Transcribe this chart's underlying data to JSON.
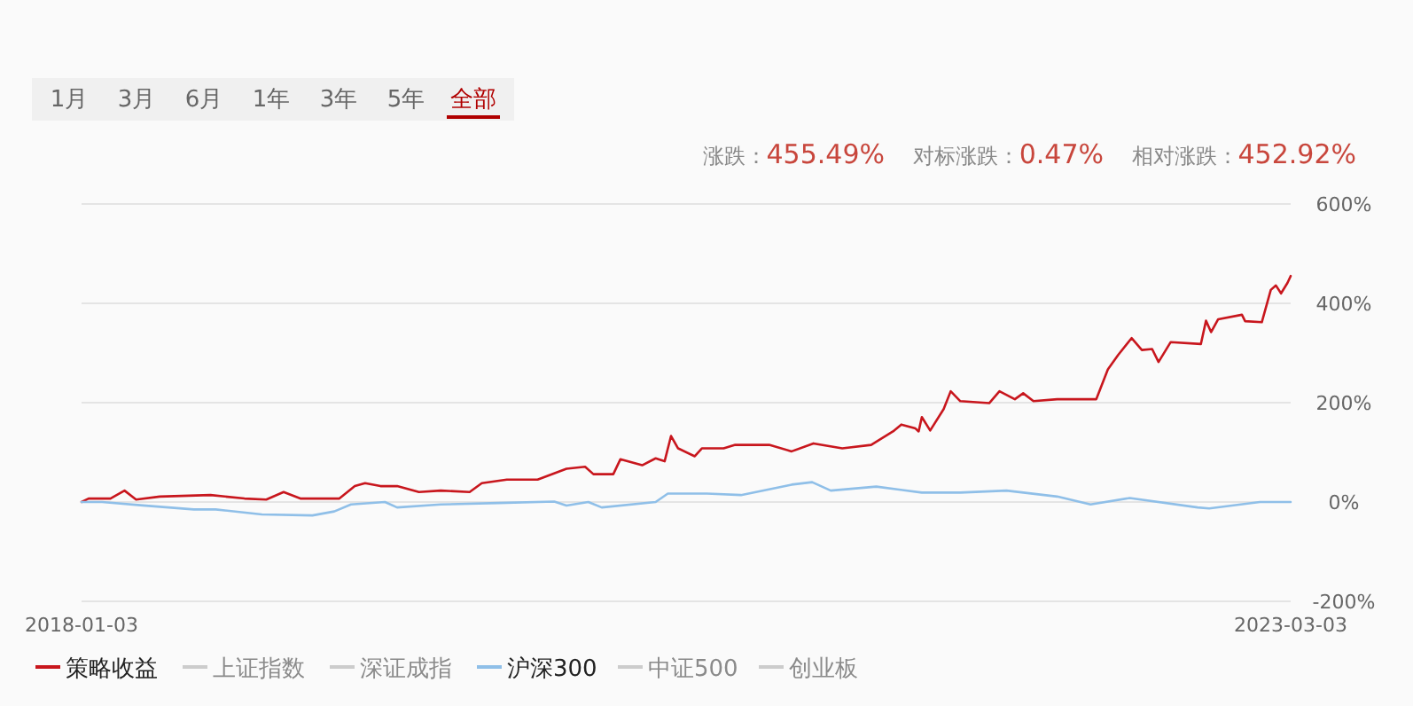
{
  "chart_data": {
    "type": "line",
    "annotations": [
      "1月",
      "3月",
      "6月",
      "1年",
      "3年",
      "5年",
      "全部",
      "涨跌：455.49%",
      "对标涨跌：0.47%",
      "相对涨跌：452.92%"
    ],
    "xlim": [
      "2018-01-03",
      "2023-03-03"
    ],
    "xticks": [
      "2018-01-03",
      "2023-03-03"
    ],
    "ylim": [
      -200,
      600
    ],
    "yticks": [
      {
        "value": -200,
        "label": "-200%"
      },
      {
        "value": 0,
        "label": "0%"
      },
      {
        "value": 200,
        "label": "200%"
      },
      {
        "value": 400,
        "label": "400%"
      },
      {
        "value": 600,
        "label": "600%"
      }
    ],
    "grid": "y",
    "legend": "bottom left",
    "marker": "none",
    "line_style": "solid",
    "series": [
      {
        "name": "策略收益",
        "color": "#c8161d",
        "x": [
          "2018-01-03",
          "2018-01-14",
          "2018-02-17",
          "2018-03-11",
          "2018-03-29",
          "2018-05-05",
          "2018-07-23",
          "2018-09-14",
          "2018-10-18",
          "2018-11-14",
          "2018-12-10",
          "2019-02-09",
          "2019-03-05",
          "2019-03-21",
          "2019-04-14",
          "2019-05-10",
          "2019-06-13",
          "2019-07-17",
          "2019-08-31",
          "2019-09-19",
          "2019-10-28",
          "2019-12-15",
          "2020-01-29",
          "2020-02-27",
          "2020-03-11",
          "2020-04-11",
          "2020-04-22",
          "2020-05-26",
          "2020-06-16",
          "2020-06-30",
          "2020-07-10",
          "2020-07-21",
          "2020-08-16",
          "2020-08-27",
          "2020-09-04",
          "2020-09-30",
          "2020-10-18",
          "2020-12-10",
          "2021-01-14",
          "2021-02-17",
          "2021-04-03",
          "2021-05-18",
          "2021-06-21",
          "2021-07-04",
          "2021-07-26",
          "2021-07-31",
          "2021-08-05",
          "2021-08-18",
          "2021-09-08",
          "2021-09-19",
          "2021-10-04",
          "2021-11-18",
          "2021-12-04",
          "2021-12-28",
          "2022-01-10",
          "2022-01-26",
          "2022-03-04",
          "2022-05-04",
          "2022-05-22",
          "2022-06-07",
          "2022-06-28",
          "2022-07-14",
          "2022-07-30",
          "2022-08-09",
          "2022-08-28",
          "2022-10-14",
          "2022-10-22",
          "2022-10-30",
          "2022-11-10",
          "2022-12-17",
          "2022-12-22",
          "2023-01-17",
          "2023-01-31",
          "2023-02-08",
          "2023-02-16",
          "2023-02-26",
          "2023-03-03"
        ],
        "values": [
          0,
          7,
          7,
          23,
          5,
          11,
          14,
          7,
          5,
          20,
          7,
          7,
          32,
          38,
          32,
          32,
          20,
          23,
          20,
          38,
          45,
          45,
          67,
          71,
          56,
          56,
          86,
          74,
          88,
          82,
          133,
          108,
          92,
          108,
          108,
          108,
          115,
          115,
          102,
          118,
          108,
          115,
          142,
          156,
          148,
          142,
          171,
          144,
          187,
          223,
          203,
          199,
          223,
          207,
          219,
          203,
          207,
          207,
          267,
          296,
          330,
          306,
          308,
          282,
          322,
          318,
          365,
          342,
          368,
          377,
          364,
          362,
          427,
          436,
          420,
          441,
          455
        ]
      },
      {
        "name": "上证指数",
        "color": "#cccccc"
      },
      {
        "name": "深证成指",
        "color": "#cccccc"
      },
      {
        "name": "沪深300",
        "color": "#8fbfe8",
        "x": [
          "2018-01-03",
          "2018-02-04",
          "2018-04-09",
          "2018-06-27",
          "2018-07-31",
          "2018-10-11",
          "2018-12-29",
          "2019-02-01",
          "2019-02-27",
          "2019-04-21",
          "2019-05-10",
          "2019-07-17",
          "2019-10-15",
          "2020-01-10",
          "2020-01-29",
          "2020-03-03",
          "2020-03-24",
          "2020-06-16",
          "2020-07-05",
          "2020-09-04",
          "2020-10-27",
          "2021-01-14",
          "2021-02-15",
          "2021-03-16",
          "2021-05-26",
          "2021-08-05",
          "2021-10-04",
          "2021-12-15",
          "2022-03-04",
          "2022-04-25",
          "2022-06-25",
          "2022-10-09",
          "2022-10-27",
          "2023-01-14",
          "2023-03-03"
        ],
        "values": [
          0,
          0,
          -7,
          -15,
          -15,
          -25,
          -27,
          -19,
          -5,
          0,
          -11,
          -5,
          -2,
          1,
          -7,
          0,
          -11,
          0,
          17,
          17,
          14,
          35,
          40,
          23,
          31,
          19,
          19,
          23,
          11,
          -5,
          8,
          -11,
          -13,
          0,
          0
        ]
      },
      {
        "name": "中证500",
        "color": "#cccccc"
      },
      {
        "name": "创业板",
        "color": "#cccccc"
      }
    ]
  }
}
